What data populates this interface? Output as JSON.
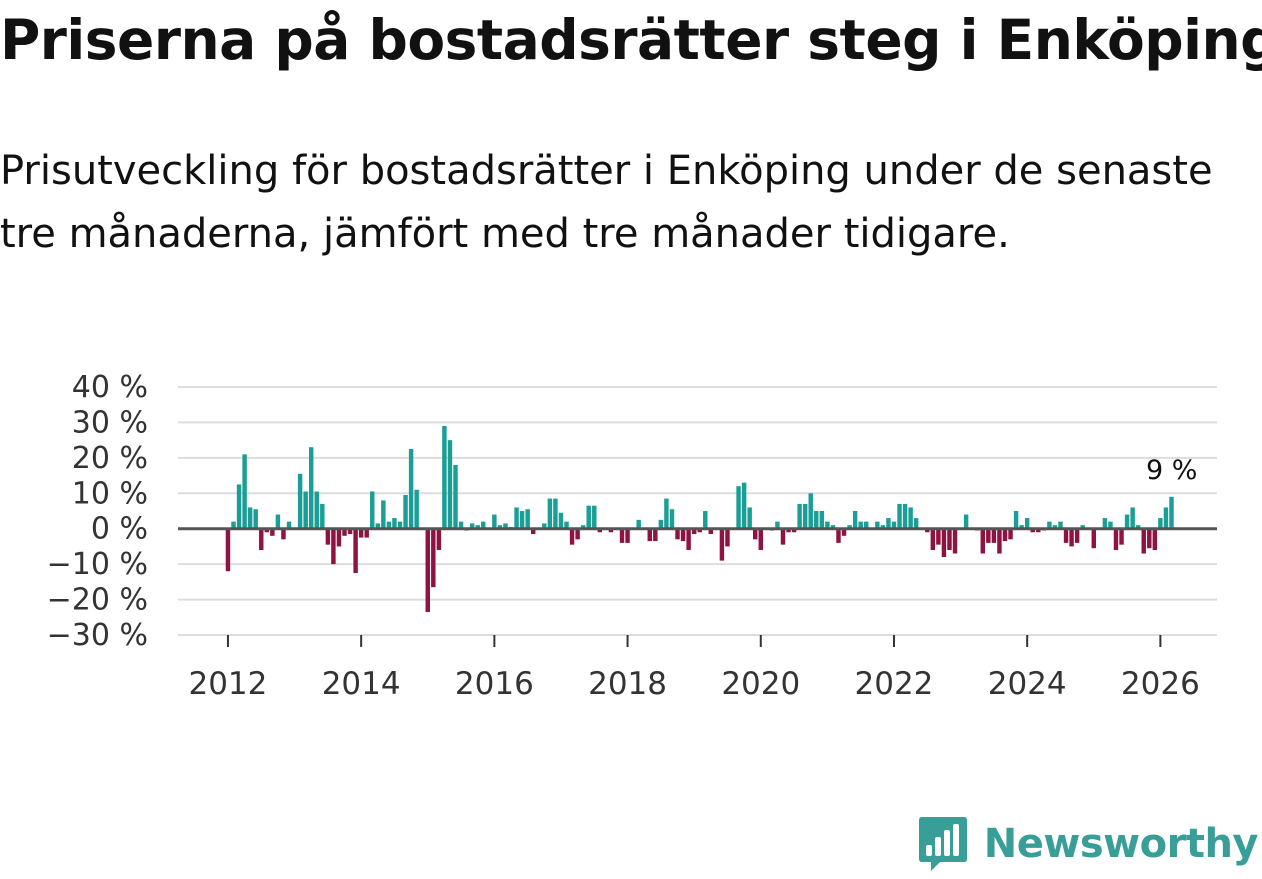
{
  "title": "Priserna på bostadsrätter steg i Enköping",
  "subtitle": "Prisutveckling för bostadsrätter i Enköping under de senaste tre månaderna, jämfört med tre månader tidigare.",
  "brand": {
    "name": "Newsworthy",
    "icon": "newsworthy-logo-icon"
  },
  "colors": {
    "positive": "#1a9e96",
    "negative": "#8e1242",
    "grid": "#dddddd",
    "zero_line": "#555555",
    "brand": "#3a9e98"
  },
  "chart_data": {
    "type": "bar",
    "title": "Priserna på bostadsrätter steg i Enköping",
    "xlabel": "",
    "ylabel": "",
    "ylim": [
      -30,
      40
    ],
    "xlim": [
      2011.25,
      2026.85
    ],
    "y_ticks": [
      40,
      30,
      20,
      10,
      0,
      -10,
      -20,
      -30
    ],
    "y_tick_labels": [
      "40 %",
      "30 %",
      "20 %",
      "10 %",
      "0 %",
      "−10 %",
      "−20 %",
      "−30 %"
    ],
    "x_ticks": [
      2012,
      2014,
      2016,
      2018,
      2020,
      2022,
      2024,
      2026
    ],
    "x_tick_labels": [
      "2012",
      "2014",
      "2016",
      "2018",
      "2020",
      "2022",
      "2024",
      "2026"
    ],
    "annotation": {
      "label": "9 %",
      "x": 2026.17,
      "y": 9
    },
    "start": {
      "year": 2012,
      "month": 1
    },
    "values": [
      -12,
      2,
      12.5,
      21,
      6,
      5.5,
      -6,
      -1,
      -2,
      4,
      -3,
      2,
      0,
      15.5,
      10.5,
      23,
      10.5,
      7,
      -4.5,
      -10,
      -5,
      -2,
      -1.5,
      -12.5,
      -2.5,
      -2.5,
      10.5,
      1.5,
      8,
      2,
      3,
      2,
      9.5,
      22.5,
      11,
      0,
      -23.5,
      -16.5,
      -6,
      29,
      25,
      18,
      2,
      -0.5,
      1.5,
      1,
      2,
      0,
      4,
      1,
      1.5,
      0.5,
      6,
      5,
      5.5,
      -1.5,
      0,
      1.5,
      8.5,
      8.5,
      4.5,
      2,
      -4.5,
      -3,
      1,
      6.5,
      6.5,
      -1,
      0,
      -1,
      0,
      -4,
      -4,
      0,
      2.5,
      0,
      -3.5,
      -3.5,
      2.5,
      8.5,
      5.5,
      -3,
      -3.5,
      -6,
      -1.5,
      -1,
      5,
      -1.5,
      0,
      -9,
      -5,
      0,
      12,
      13,
      6,
      -3,
      -6,
      0,
      -0.5,
      2,
      -4.5,
      -1,
      -1,
      7,
      7,
      10,
      5,
      5,
      2,
      1,
      -4,
      -2,
      1,
      5,
      2,
      2,
      0,
      2,
      1,
      3,
      2,
      7,
      7,
      6,
      3,
      0,
      -1,
      -6,
      -4.5,
      -8,
      -6,
      -7,
      0,
      4,
      0,
      -0.5,
      -7,
      -4,
      -4,
      -7,
      -3.5,
      -3,
      5,
      1,
      3,
      -1,
      -1,
      -0.5,
      2,
      1,
      2,
      -4,
      -5,
      -4,
      1,
      0,
      -5.5,
      0,
      3,
      2,
      -6,
      -4.5,
      4,
      6,
      1,
      -7,
      -5.5,
      -6,
      3,
      6,
      9
    ]
  }
}
